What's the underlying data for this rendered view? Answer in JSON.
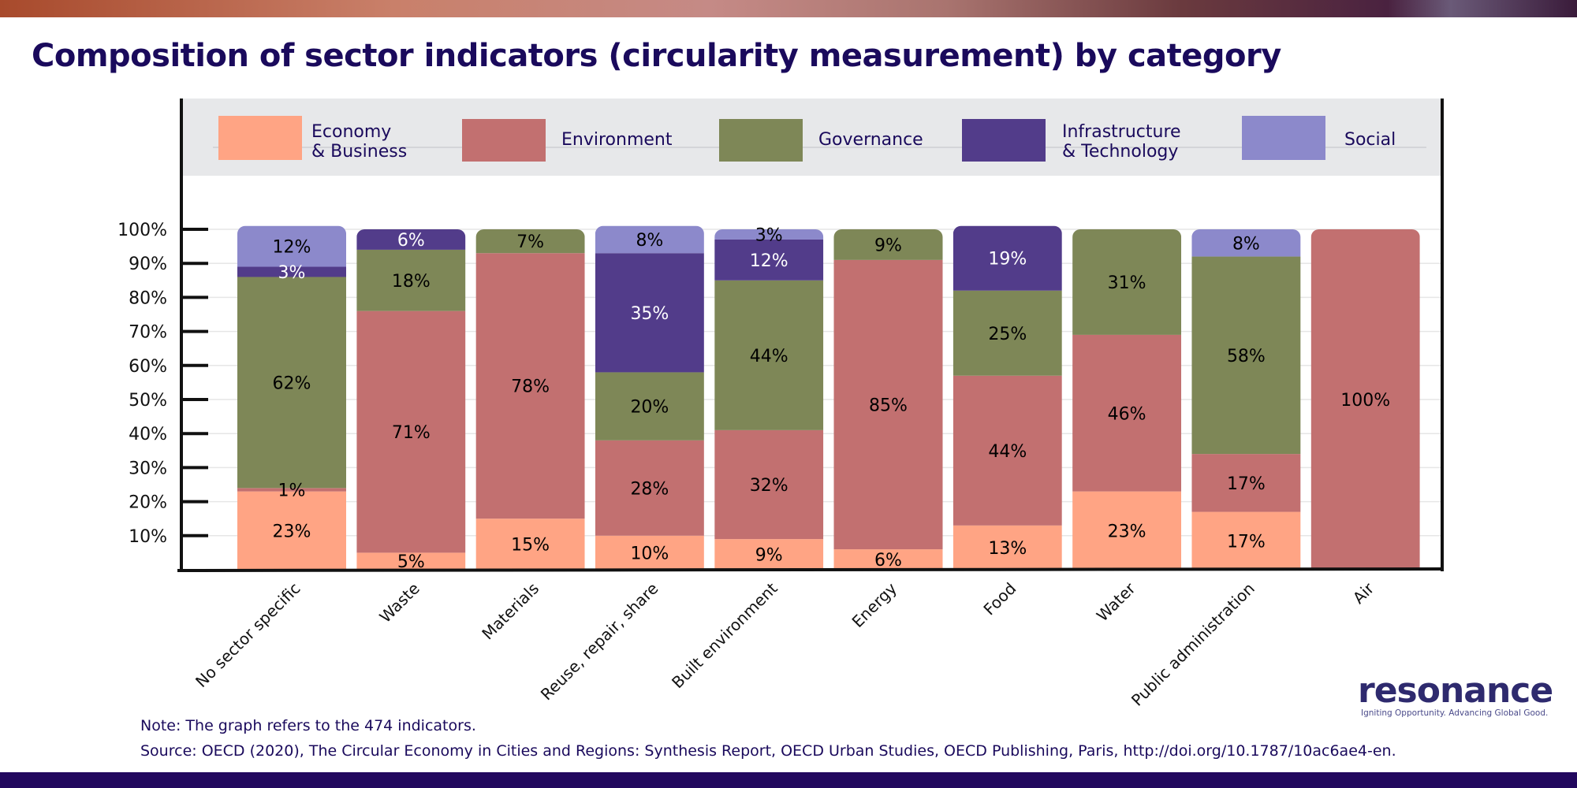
{
  "title": "Composition of sector indicators (circularity measurement) by category",
  "note": "Note: The graph refers to the 474 indicators.",
  "source": "Source: OECD (2020), The Circular Economy in Cities and Regions: Synthesis Report, OECD Urban Studies, OECD Publishing, Paris, http://doi.org/10.1787/10ac6ae4-en.",
  "logo": {
    "name": "resonance",
    "tagline": "Igniting Opportunity. Advancing Global Good."
  },
  "colors": {
    "title": "#1a0a5c",
    "legend_bg": "#e7e8ea",
    "bottom_bar": "#22085e"
  },
  "chart_data": {
    "type": "bar",
    "stacked": true,
    "orientation": "vertical",
    "title": "Composition of sector indicators (circularity measurement) by category",
    "xlabel": "",
    "ylabel": "",
    "ylim": [
      0,
      100
    ],
    "yticks": [
      "10%",
      "20%",
      "30%",
      "40%",
      "50%",
      "60%",
      "70%",
      "80%",
      "90%",
      "100%"
    ],
    "legend_position": "top",
    "grid": true,
    "categories": [
      "No sector specific",
      "Waste",
      "Materials",
      "Reuse, repair, share",
      "Built environment",
      "Energy",
      "Food",
      "Water",
      "Public administration",
      "Air"
    ],
    "series": [
      {
        "name": "Economy & Business",
        "legend_lines": [
          "Economy",
          "& Business"
        ],
        "color": "#ffa484",
        "label_color": "#000000",
        "values": [
          23,
          5,
          15,
          10,
          9,
          6,
          13,
          23,
          17,
          0
        ]
      },
      {
        "name": "Environment",
        "legend_lines": [
          "Environment"
        ],
        "color": "#c27070",
        "label_color": "#000000",
        "values": [
          1,
          71,
          78,
          28,
          32,
          85,
          44,
          46,
          17,
          100
        ]
      },
      {
        "name": "Governance",
        "legend_lines": [
          "Governance"
        ],
        "color": "#7e8757",
        "label_color": "#000000",
        "values": [
          62,
          18,
          7,
          20,
          44,
          9,
          25,
          31,
          58,
          0
        ]
      },
      {
        "name": "Infrastructure & Technology",
        "legend_lines": [
          "Infrastructure",
          "& Technology"
        ],
        "color": "#523c8a",
        "label_color": "#ffffff",
        "values": [
          3,
          6,
          0,
          35,
          12,
          0,
          19,
          0,
          0,
          0
        ]
      },
      {
        "name": "Social",
        "legend_lines": [
          "Social"
        ],
        "color": "#8c89cb",
        "label_color": "#000000",
        "values": [
          12,
          0,
          0,
          8,
          3,
          0,
          0,
          0,
          8,
          0
        ]
      }
    ]
  }
}
